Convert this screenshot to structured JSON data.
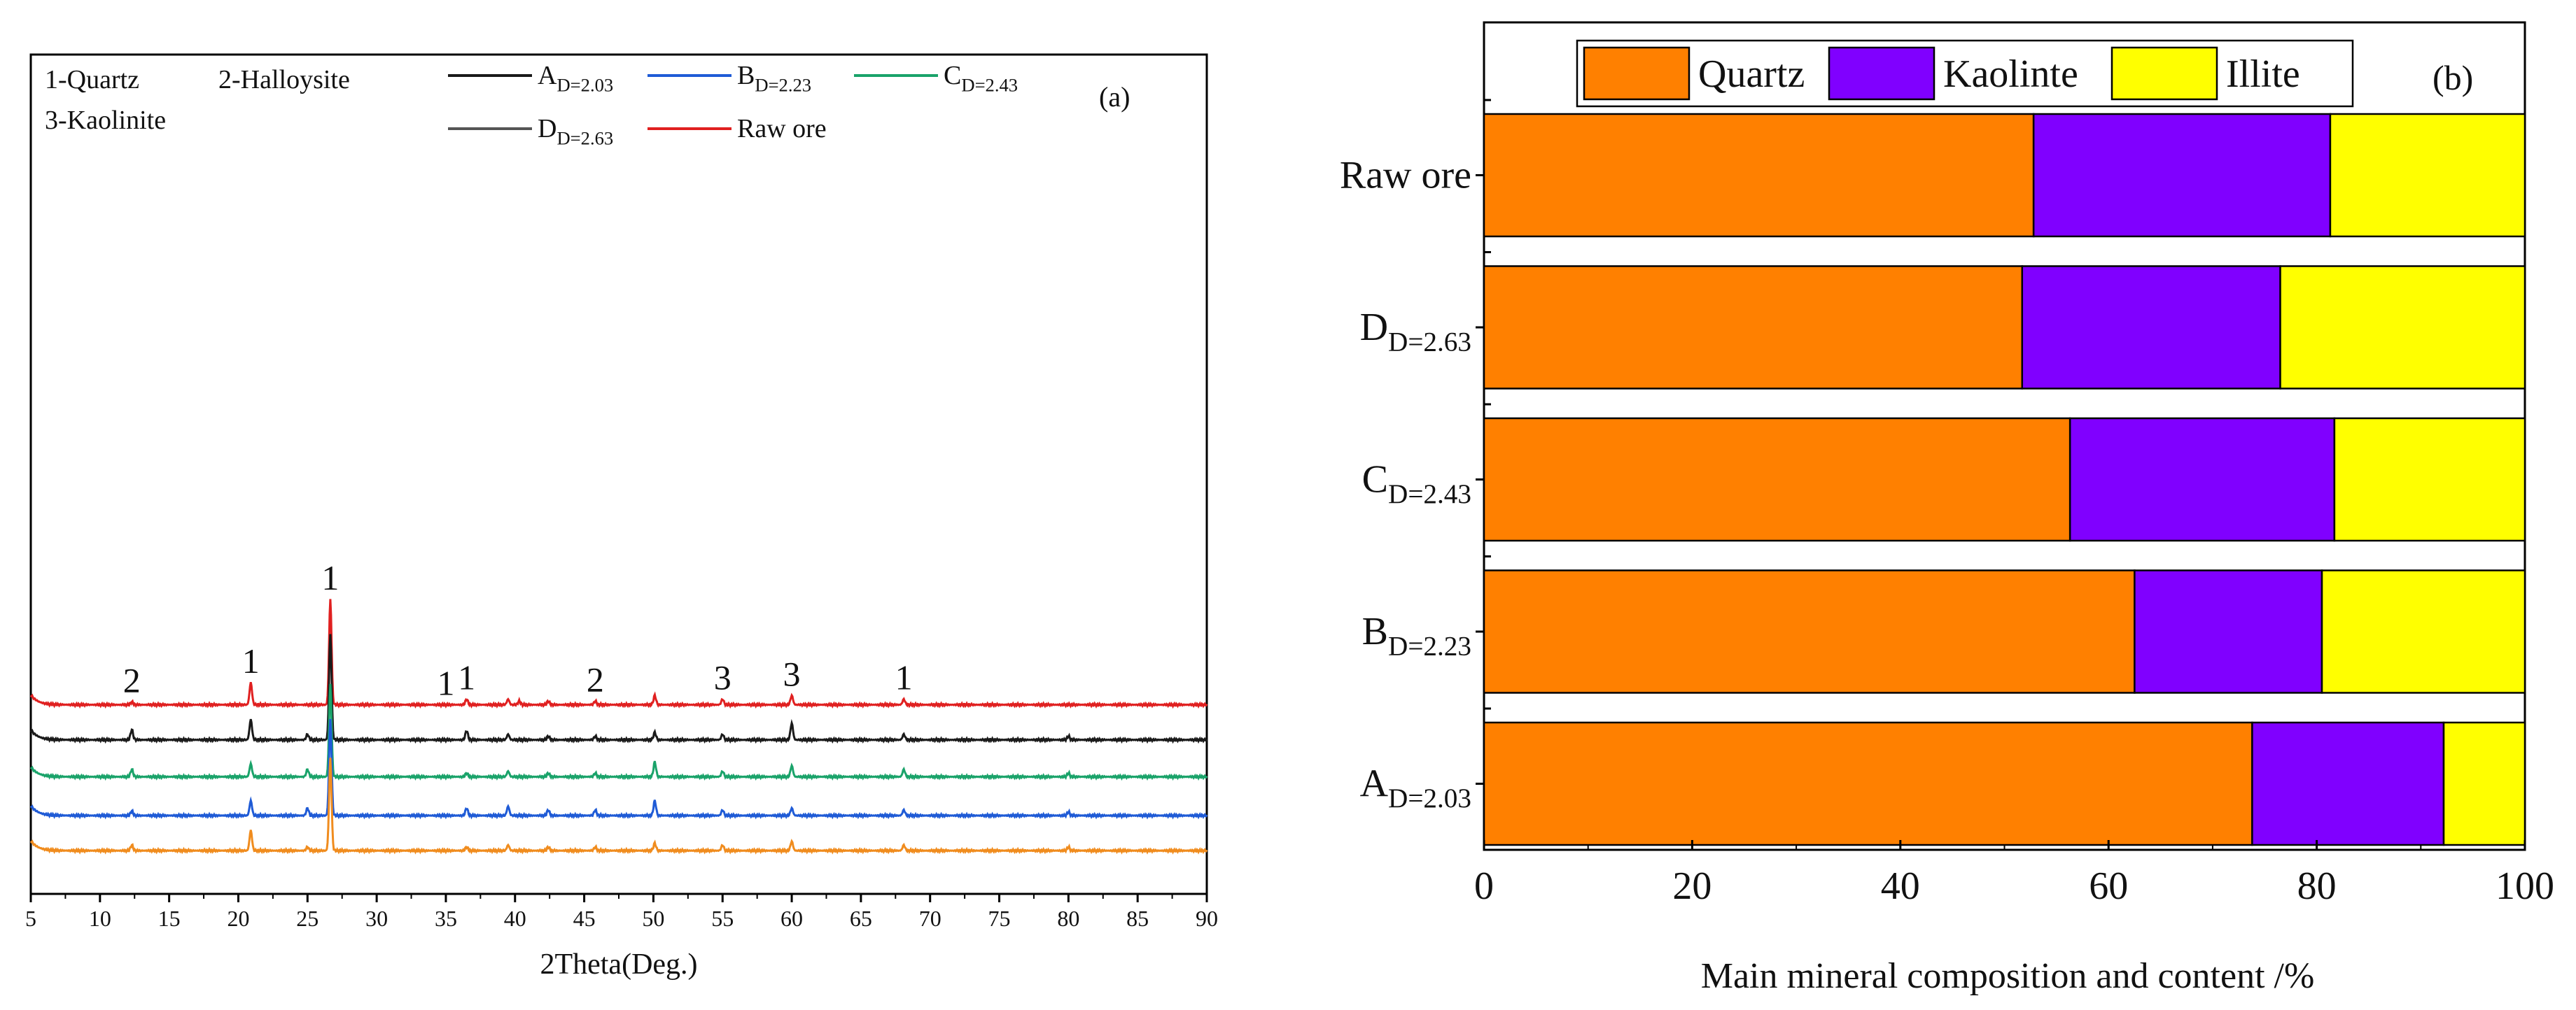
{
  "chart_data": [
    {
      "type": "line",
      "panel_label": "(a)",
      "xlabel": "2Theta(Deg.)",
      "xlim": [
        5,
        90
      ],
      "x_ticks": [
        5,
        10,
        15,
        20,
        25,
        30,
        35,
        40,
        45,
        50,
        55,
        60,
        65,
        70,
        75,
        80,
        85,
        90
      ],
      "mineral_key": [
        "1-Quartz",
        "2-Halloysite",
        "3-Kaolinite"
      ],
      "legend": [
        {
          "label": "A",
          "sub": "D=2.03",
          "color": "#1a1a1a"
        },
        {
          "label": "B",
          "sub": "D=2.23",
          "color": "#1f5bd6"
        },
        {
          "label": "C",
          "sub": "D=2.43",
          "color": "#1aa36a"
        },
        {
          "label": "D",
          "sub": "D=2.63",
          "color": "#555555"
        },
        {
          "label": "Raw ore",
          "sub": "",
          "color": "#e02020"
        }
      ],
      "series": [
        {
          "name": "Raw ore",
          "color": "#e02020",
          "baseline": 8.5,
          "peaks": [
            [
              12.3,
              0.15
            ],
            [
              20.9,
              1.2
            ],
            [
              26.65,
              5.7
            ],
            [
              36.5,
              0.3
            ],
            [
              39.5,
              0.3
            ],
            [
              40.3,
              0.2
            ],
            [
              42.4,
              0.2
            ],
            [
              45.8,
              0.2
            ],
            [
              50.1,
              0.5
            ],
            [
              55.0,
              0.3
            ],
            [
              60.0,
              0.5
            ],
            [
              68.1,
              0.3
            ]
          ]
        },
        {
          "name": "D",
          "sub": "D=2.63",
          "color": "#1a1a1a",
          "baseline": 6.6,
          "peaks": [
            [
              12.3,
              0.55
            ],
            [
              20.9,
              1.1
            ],
            [
              25.0,
              0.3
            ],
            [
              26.65,
              5.7
            ],
            [
              36.5,
              0.5
            ],
            [
              39.5,
              0.3
            ],
            [
              42.4,
              0.2
            ],
            [
              45.8,
              0.2
            ],
            [
              50.1,
              0.4
            ],
            [
              55.0,
              0.3
            ],
            [
              60.0,
              0.9
            ],
            [
              68.1,
              0.3
            ],
            [
              80.0,
              0.2
            ]
          ]
        },
        {
          "name": "C",
          "sub": "D=2.43",
          "color": "#1aa36a",
          "baseline": 4.6,
          "peaks": [
            [
              12.3,
              0.4
            ],
            [
              20.9,
              0.7
            ],
            [
              25.0,
              0.4
            ],
            [
              26.65,
              5.0
            ],
            [
              36.5,
              0.2
            ],
            [
              39.5,
              0.3
            ],
            [
              42.4,
              0.2
            ],
            [
              45.8,
              0.2
            ],
            [
              50.1,
              0.8
            ],
            [
              55.0,
              0.3
            ],
            [
              60.0,
              0.6
            ],
            [
              68.1,
              0.4
            ],
            [
              80.0,
              0.2
            ]
          ]
        },
        {
          "name": "B",
          "sub": "D=2.23",
          "color": "#1f5bd6",
          "baseline": 2.5,
          "peaks": [
            [
              12.3,
              0.25
            ],
            [
              20.9,
              0.8
            ],
            [
              25.0,
              0.4
            ],
            [
              26.65,
              5.2
            ],
            [
              36.5,
              0.4
            ],
            [
              39.5,
              0.5
            ],
            [
              42.4,
              0.3
            ],
            [
              45.8,
              0.3
            ],
            [
              50.1,
              0.8
            ],
            [
              55.0,
              0.3
            ],
            [
              60.0,
              0.4
            ],
            [
              68.1,
              0.3
            ],
            [
              80.0,
              0.2
            ]
          ]
        },
        {
          "name": "A",
          "sub": "D=2.03",
          "color": "#f08c1e",
          "baseline": 0.6,
          "peaks": [
            [
              12.3,
              0.3
            ],
            [
              20.9,
              1.1
            ],
            [
              25.0,
              0.2
            ],
            [
              26.65,
              5.0
            ],
            [
              36.5,
              0.2
            ],
            [
              39.5,
              0.3
            ],
            [
              42.4,
              0.2
            ],
            [
              45.8,
              0.2
            ],
            [
              50.1,
              0.4
            ],
            [
              55.0,
              0.3
            ],
            [
              60.0,
              0.5
            ],
            [
              68.1,
              0.3
            ],
            [
              80.0,
              0.2
            ]
          ]
        }
      ],
      "peak_labels": [
        {
          "text": "2",
          "x": 12.3
        },
        {
          "text": "1",
          "x": 20.9
        },
        {
          "text": "1",
          "x": 26.65
        },
        {
          "text": "1",
          "x": 35.0
        },
        {
          "text": "1",
          "x": 36.5
        },
        {
          "text": "2",
          "x": 45.8
        },
        {
          "text": "3",
          "x": 55.0
        },
        {
          "text": "3",
          "x": 60.0
        },
        {
          "text": "1",
          "x": 68.1
        }
      ]
    },
    {
      "type": "bar",
      "orientation": "horizontal",
      "stacked": true,
      "panel_label": "(b)",
      "xlabel": "Main mineral composition and content /%",
      "xlim": [
        0,
        100
      ],
      "x_ticks": [
        0,
        20,
        40,
        60,
        80,
        100
      ],
      "legend_placement": "top",
      "categories": [
        {
          "label": "Raw ore",
          "sub": ""
        },
        {
          "label": "D",
          "sub": "D=2.63"
        },
        {
          "label": "C",
          "sub": "D=2.43"
        },
        {
          "label": "B",
          "sub": "D=2.23"
        },
        {
          "label": "A",
          "sub": "D=2.03"
        }
      ],
      "series": [
        {
          "name": "Quartz",
          "color": "#ff8000",
          "values": [
            52.8,
            51.7,
            56.3,
            62.5,
            73.8
          ]
        },
        {
          "name": "Kaolinte",
          "color": "#8000ff",
          "values": [
            28.5,
            24.8,
            25.4,
            18.0,
            18.4
          ]
        },
        {
          "name": "Illite",
          "color": "#ffff00",
          "values": [
            18.7,
            23.5,
            18.3,
            19.5,
            7.8
          ]
        }
      ]
    }
  ]
}
